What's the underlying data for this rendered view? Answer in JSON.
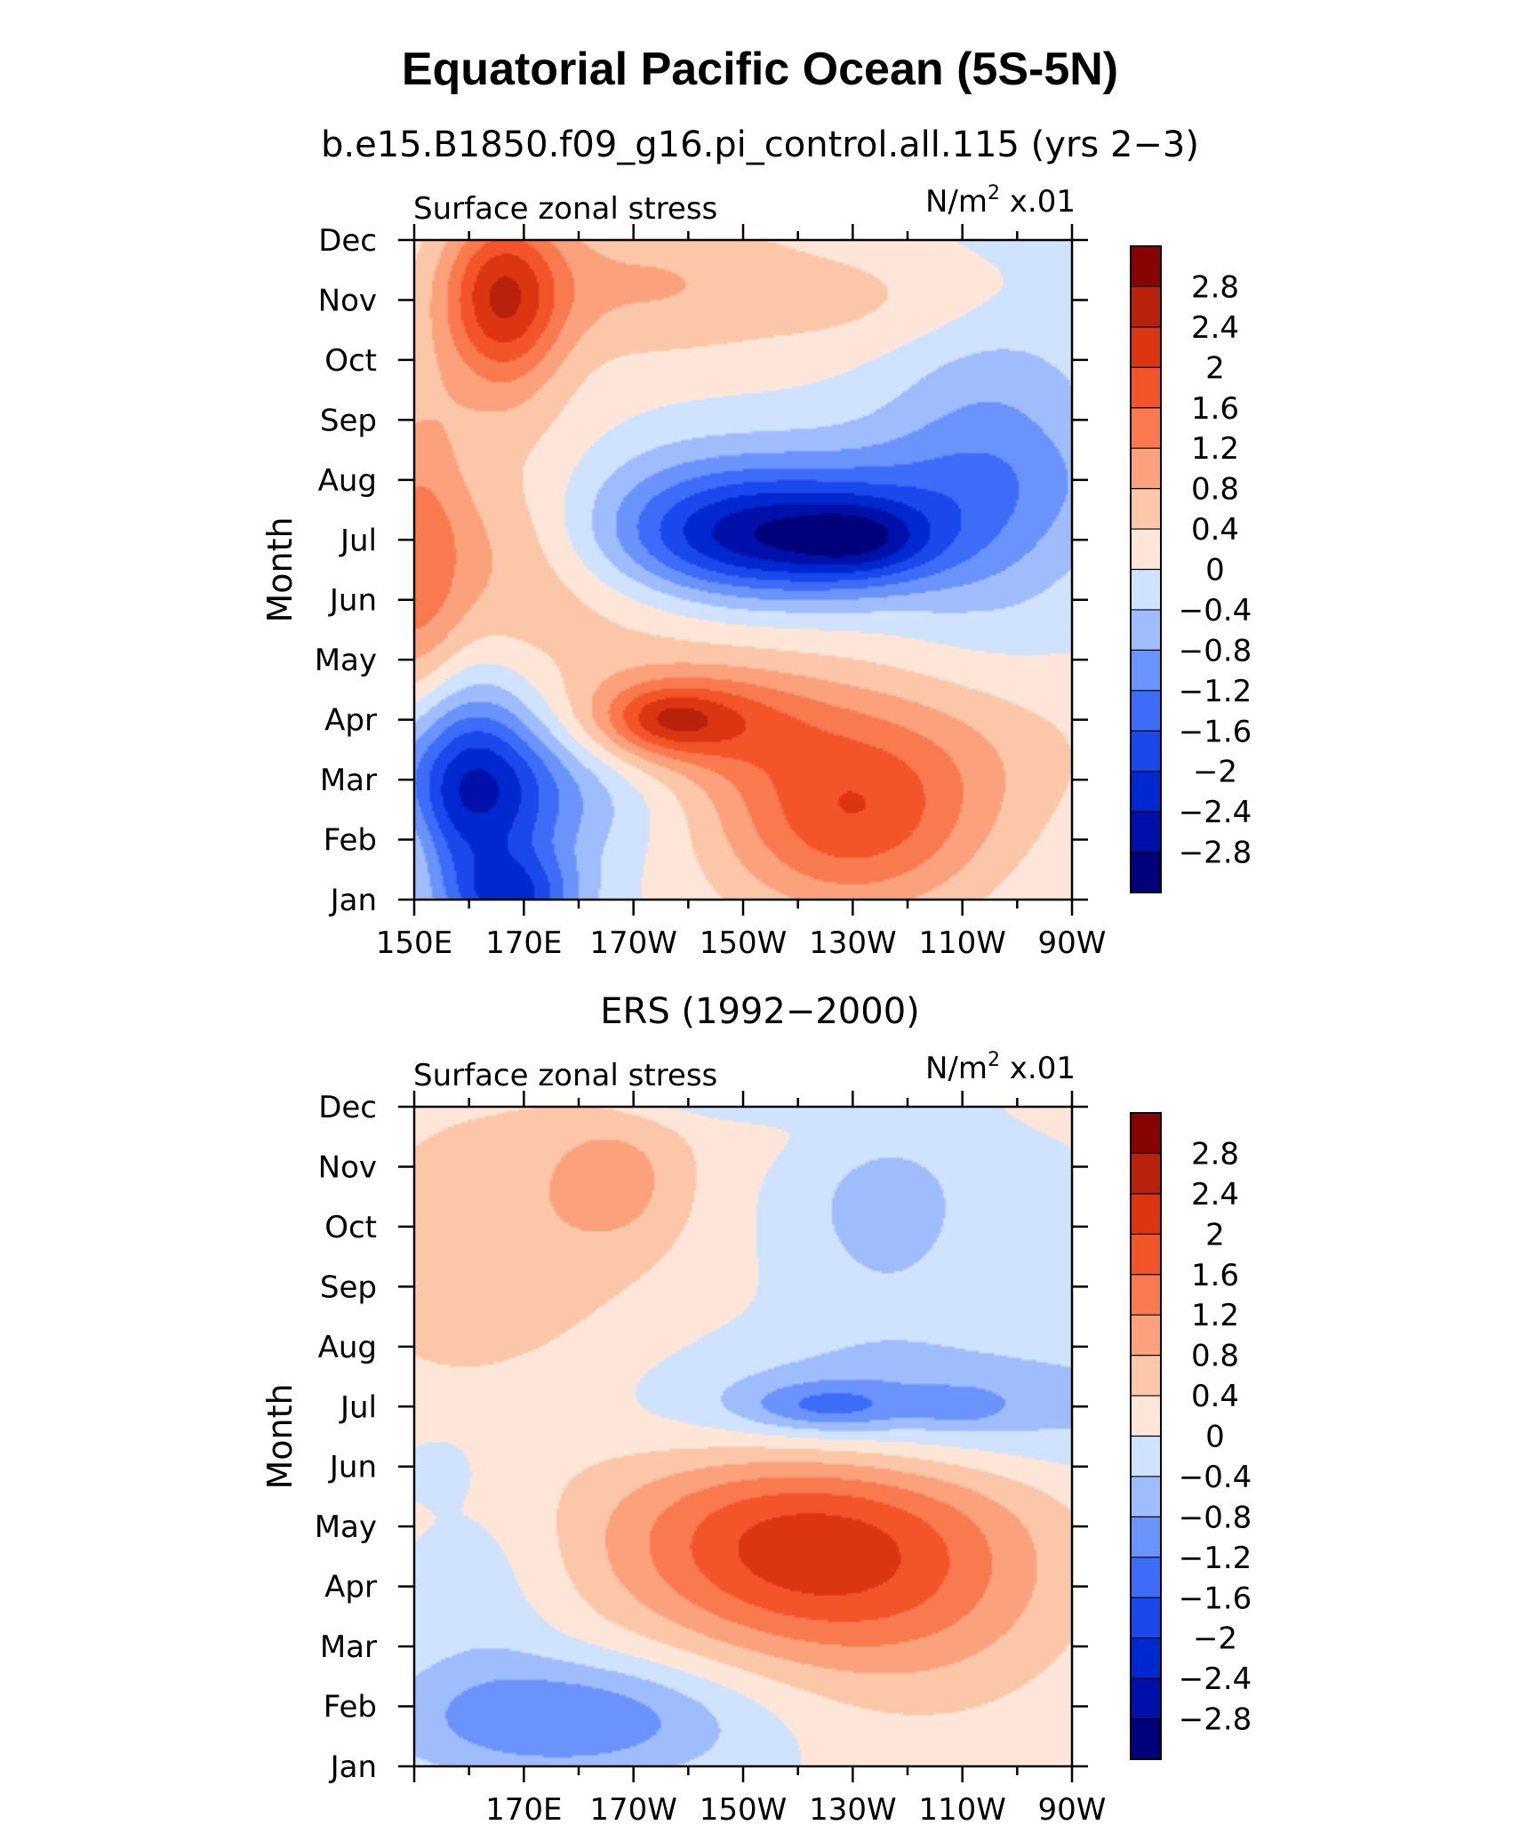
{
  "title": "Equatorial Pacific Ocean (5S-5N)",
  "colors": {
    "levels": [
      -2.8,
      -2.4,
      -2.0,
      -1.6,
      -1.2,
      -0.8,
      -0.4,
      0,
      0.4,
      0.8,
      1.2,
      1.6,
      2.0,
      2.4,
      2.8
    ],
    "palette": [
      "#00007a",
      "#0010a8",
      "#0028d0",
      "#1a48ec",
      "#3c6cf8",
      "#6a94fc",
      "#9fbcfd",
      "#cfe2fe",
      "#fde6d8",
      "#fcc6a8",
      "#fba17b",
      "#f97a4f",
      "#f4542a",
      "#dc3512",
      "#b8210b",
      "#870500"
    ]
  },
  "panels": [
    {
      "subtitle": "b.e15.B1850.f09_g16.pi_control.all.115 (yrs 2−3)",
      "left_label": "Surface zonal stress",
      "right_label_base": "N/m",
      "right_label_exp": "2",
      "right_label_suffix": " x.01",
      "ylabel": "Month",
      "colorbar_labels": [
        "2.8",
        "2.4",
        "2",
        "1.6",
        "1.2",
        "0.8",
        "0.4",
        "0",
        "−0.4",
        "−0.8",
        "−1.2",
        "−1.6",
        "−2",
        "−2.4",
        "−2.8"
      ]
    },
    {
      "subtitle": "ERS (1992−2000)",
      "left_label": "Surface zonal stress",
      "right_label_base": "N/m",
      "right_label_exp": "2",
      "right_label_suffix": " x.01",
      "ylabel": "Month",
      "colorbar_labels": [
        "2.8",
        "2.4",
        "2",
        "1.6",
        "1.2",
        "0.8",
        "0.4",
        "0",
        "−0.4",
        "−0.8",
        "−1.2",
        "−1.6",
        "−2",
        "−2.4",
        "−2.8"
      ]
    }
  ],
  "chart_data": [
    {
      "type": "heatmap",
      "title": "Equatorial Pacific Ocean (5S-5N)",
      "subtitle": "b.e15.B1850.f09_g16.pi_control.all.115 (yrs 2−3)",
      "left_label": "Surface zonal stress",
      "units": "N/m2 x.01",
      "xlabel": "",
      "ylabel": "Month",
      "x_tick_labels": [
        "150E",
        "170E",
        "170W",
        "150W",
        "130W",
        "110W",
        "90W"
      ],
      "y_tick_labels": [
        "Jan",
        "Feb",
        "Mar",
        "Apr",
        "May",
        "Jun",
        "Jul",
        "Aug",
        "Sep",
        "Oct",
        "Nov",
        "Dec"
      ],
      "x_range": [
        "150E",
        "90W"
      ],
      "y_range": [
        "Jan",
        "Dec"
      ],
      "levels": [
        -2.8,
        -2.4,
        -2.0,
        -1.6,
        -1.2,
        -0.8,
        -0.4,
        0,
        0.4,
        0.8,
        1.2,
        1.6,
        2.0,
        2.4,
        2.8
      ],
      "blobs": [
        {
          "x": 150,
          "y": 1.0,
          "rx": 5,
          "ry": 1.0,
          "a": 0.4
        },
        {
          "x": 150,
          "y": 5.5,
          "rx": 9,
          "ry": 3.0,
          "a": 1.0
        },
        {
          "x": 165,
          "y": 6.5,
          "rx": 24,
          "ry": 1.8,
          "a": 0.9
        },
        {
          "x": 160,
          "y": 2.0,
          "rx": 14,
          "ry": 1.8,
          "a": -1.8
        },
        {
          "x": 168,
          "y": 0.0,
          "rx": 12,
          "ry": 0.8,
          "a": -1.8
        },
        {
          "x": 170,
          "y": 1.8,
          "rx": 26,
          "ry": 1.2,
          "a": -1.0
        },
        {
          "x": 200,
          "y": 3.0,
          "rx": 20,
          "ry": 0.8,
          "a": 1.3
        },
        {
          "x": 196,
          "y": 3.0,
          "rx": 10,
          "ry": 0.5,
          "a": 0.8
        },
        {
          "x": 166,
          "y": 10.0,
          "rx": 11,
          "ry": 1.5,
          "a": 2.1
        },
        {
          "x": 190,
          "y": 10.3,
          "rx": 30,
          "ry": 1.3,
          "a": 0.8
        },
        {
          "x": 240,
          "y": 10.0,
          "rx": 30,
          "ry": 1.0,
          "a": 0.5
        },
        {
          "x": 215,
          "y": 6.0,
          "rx": 30,
          "ry": 1.0,
          "a": -2.6
        },
        {
          "x": 232,
          "y": 6.0,
          "rx": 12,
          "ry": 0.6,
          "a": -0.9
        },
        {
          "x": 215,
          "y": 7.0,
          "rx": 65,
          "ry": 1.0,
          "a": -0.6
        },
        {
          "x": 255,
          "y": 7.5,
          "rx": 20,
          "ry": 3.0,
          "a": -0.8
        },
        {
          "x": 230,
          "y": 1.2,
          "rx": 25,
          "ry": 1.6,
          "a": 1.6
        },
        {
          "x": 230,
          "y": 2.6,
          "rx": 45,
          "ry": 1.5,
          "a": 0.8
        },
        {
          "x": 175,
          "y": 4.5,
          "rx": 40,
          "ry": 1.5,
          "a": 0.4
        }
      ]
    },
    {
      "type": "heatmap",
      "title": "Equatorial Pacific Ocean (5S-5N)",
      "subtitle": "ERS (1992−2000)",
      "left_label": "Surface zonal stress",
      "units": "N/m2 x.01",
      "xlabel": "",
      "ylabel": "Month",
      "x_tick_labels": [
        "170E",
        "170W",
        "150W",
        "130W",
        "110W",
        "90W"
      ],
      "y_tick_labels": [
        "Jan",
        "Feb",
        "Mar",
        "Apr",
        "May",
        "Jun",
        "Jul",
        "Aug",
        "Sep",
        "Oct",
        "Nov",
        "Dec"
      ],
      "x_range": [
        "150E",
        "90W"
      ],
      "y_range": [
        "Jan",
        "Dec"
      ],
      "levels": [
        -2.8,
        -2.4,
        -2.0,
        -1.6,
        -1.2,
        -0.8,
        -0.4,
        0,
        0.4,
        0.8,
        1.2,
        1.6,
        2.0,
        2.4,
        2.8
      ],
      "blobs": [
        {
          "x": 163,
          "y": 8.5,
          "rx": 35,
          "ry": 3.5,
          "a": 0.6
        },
        {
          "x": 187,
          "y": 9.8,
          "rx": 14,
          "ry": 1.2,
          "a": 0.7
        },
        {
          "x": 230,
          "y": 11.0,
          "rx": 25,
          "ry": 1.0,
          "a": 0.3
        },
        {
          "x": 211,
          "y": 11.6,
          "rx": 22,
          "ry": 0.6,
          "a": -1.5
        },
        {
          "x": 236,
          "y": 9.5,
          "rx": 18,
          "ry": 2.0,
          "a": -0.6
        },
        {
          "x": 240,
          "y": 6.0,
          "rx": 50,
          "ry": 1.1,
          "a": -0.9
        },
        {
          "x": 225,
          "y": 6.0,
          "rx": 15,
          "ry": 0.4,
          "a": -0.9
        },
        {
          "x": 250,
          "y": 6.0,
          "rx": 8,
          "ry": 0.3,
          "a": -0.5
        },
        {
          "x": 178,
          "y": 0.8,
          "rx": 32,
          "ry": 1.0,
          "a": -1.2
        },
        {
          "x": 154,
          "y": 5.0,
          "rx": 6,
          "ry": 0.5,
          "a": -0.4
        },
        {
          "x": 163,
          "y": 3.0,
          "rx": 14,
          "ry": 2.0,
          "a": -0.3
        },
        {
          "x": 222,
          "y": 3.5,
          "rx": 35,
          "ry": 1.8,
          "a": 1.6
        },
        {
          "x": 245,
          "y": 3.0,
          "rx": 30,
          "ry": 2.5,
          "a": 0.6
        },
        {
          "x": 210,
          "y": 4.0,
          "rx": 30,
          "ry": 1.5,
          "a": 0.5
        }
      ]
    }
  ]
}
